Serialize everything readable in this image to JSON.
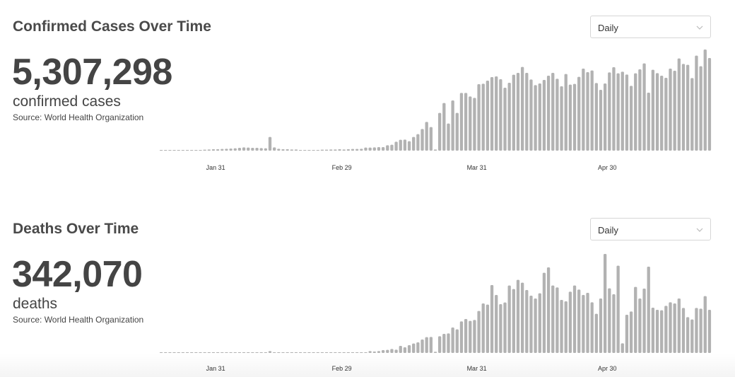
{
  "sections": [
    {
      "title": "Confirmed Cases Over Time",
      "total": "5,307,298",
      "unit": "confirmed cases",
      "source": "Source: World Health Organization",
      "dropdown": {
        "selected": "Daily",
        "icon": "chevron-down-icon"
      }
    },
    {
      "title": "Deaths Over Time",
      "total": "342,070",
      "unit": "deaths",
      "source": "Source: World Health Organization",
      "dropdown": {
        "selected": "Daily",
        "icon": "chevron-down-icon"
      }
    }
  ],
  "chart_data": [
    {
      "type": "bar",
      "title": "Confirmed Cases Over Time",
      "x_start": "Jan 18",
      "x_end": "May 23",
      "x_ticks": [
        {
          "label": "Jan 31",
          "index": 13
        },
        {
          "label": "Feb 29",
          "index": 42
        },
        {
          "label": "Mar 31",
          "index": 73
        },
        {
          "label": "Apr 30",
          "index": 103
        }
      ],
      "bar_color": "#b2b2b2",
      "grid": false,
      "values": [
        250,
        250,
        250,
        250,
        500,
        500,
        500,
        750,
        750,
        750,
        1000,
        1250,
        1500,
        1500,
        1750,
        2000,
        2250,
        2500,
        3000,
        3500,
        3250,
        3000,
        3000,
        2750,
        2500,
        14500,
        3500,
        2000,
        1500,
        1500,
        1250,
        1250,
        500,
        750,
        750,
        750,
        750,
        1000,
        1000,
        1250,
        1250,
        1500,
        1250,
        1500,
        1750,
        1750,
        2000,
        3250,
        3250,
        3500,
        3750,
        3750,
        5750,
        6250,
        9500,
        11500,
        11750,
        10000,
        14500,
        17500,
        23000,
        30500,
        25000,
        1250,
        40000,
        50500,
        28750,
        53250,
        40000,
        61250,
        61250,
        57500,
        56000,
        70500,
        71000,
        74250,
        78000,
        78750,
        75750,
        66750,
        72000,
        80500,
        82500,
        88750,
        82500,
        75500,
        69500,
        71250,
        75000,
        79500,
        82500,
        76250,
        68250,
        81250,
        70000,
        70750,
        78250,
        87000,
        83250,
        85000,
        71750,
        64500,
        71250,
        83000,
        88500,
        82000,
        83750,
        80750,
        68750,
        82000,
        86250,
        92500,
        61500,
        85750,
        82250,
        79500,
        77250,
        87000,
        84750,
        97750,
        92000,
        91000,
        77000,
        100750,
        89500,
        107250,
        98250
      ]
    },
    {
      "type": "bar",
      "title": "Deaths Over Time",
      "x_start": "Jan 18",
      "x_end": "May 23",
      "x_ticks": [
        {
          "label": "Jan 31",
          "index": 13
        },
        {
          "label": "Feb 29",
          "index": 42
        },
        {
          "label": "Mar 31",
          "index": 73
        },
        {
          "label": "Apr 30",
          "index": 103
        }
      ],
      "bar_color": "#b2b2b2",
      "grid": false,
      "values": [
        20,
        20,
        20,
        20,
        20,
        20,
        30,
        30,
        30,
        30,
        40,
        40,
        40,
        40,
        40,
        40,
        40,
        40,
        50,
        50,
        50,
        60,
        60,
        60,
        60,
        160,
        10,
        50,
        50,
        50,
        50,
        50,
        40,
        40,
        40,
        30,
        30,
        30,
        30,
        40,
        40,
        40,
        40,
        40,
        40,
        40,
        40,
        40,
        160,
        120,
        160,
        240,
        260,
        340,
        280,
        600,
        480,
        660,
        800,
        900,
        1140,
        1340,
        1360,
        100,
        1420,
        1620,
        1660,
        2160,
        2000,
        2680,
        2880,
        2720,
        2800,
        3560,
        4200,
        4100,
        5760,
        4920,
        4140,
        4280,
        5720,
        5420,
        6200,
        5960,
        5340,
        4860,
        4620,
        5060,
        6800,
        7260,
        5720,
        5560,
        4500,
        4380,
        5200,
        5720,
        5380,
        4920,
        5100,
        4300,
        3320,
        4620,
        8400,
        5480,
        4980,
        7400,
        820,
        3240,
        3520,
        5600,
        4620,
        5460,
        7320,
        3840,
        3660,
        3620,
        4000,
        4300,
        4200,
        4620,
        3820,
        3040,
        2840,
        3820,
        3760,
        4820,
        3660
      ]
    }
  ]
}
